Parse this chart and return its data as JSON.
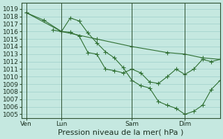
{
  "background_color": "#c5e8e0",
  "grid_color": "#9ecfca",
  "line_color": "#2d6e30",
  "marker_color": "#2d6e30",
  "ylabel_ticks": [
    1005,
    1006,
    1007,
    1008,
    1009,
    1010,
    1011,
    1012,
    1013,
    1014,
    1015,
    1016,
    1017,
    1018,
    1019
  ],
  "ylim": [
    1004.5,
    1019.8
  ],
  "xlabel": "Pression niveau de la mer( hPa )",
  "xlabel_fontsize": 8,
  "tick_fontsize": 6.5,
  "day_labels": [
    "Ven",
    "Lun",
    "Sam",
    "Dim"
  ],
  "day_positions": [
    0,
    4,
    12,
    18
  ],
  "xlim": [
    -0.5,
    22
  ],
  "series": [
    {
      "x": [
        0,
        4,
        8,
        12,
        16,
        18,
        20,
        22
      ],
      "y": [
        1018.5,
        1016.0,
        1015.0,
        1014.0,
        1013.2,
        1013.0,
        1012.5,
        1012.3
      ]
    },
    {
      "x": [
        0,
        2,
        4,
        5,
        6,
        7,
        8,
        9,
        10,
        11,
        12,
        13,
        14,
        15,
        16,
        17,
        18,
        19,
        20,
        21,
        22
      ],
      "y": [
        1018.5,
        1017.5,
        1016.0,
        1017.8,
        1017.4,
        1015.8,
        1014.5,
        1013.3,
        1012.5,
        1011.2,
        1009.5,
        1008.8,
        1008.5,
        1006.7,
        1006.2,
        1005.8,
        1005.0,
        1005.4,
        1006.2,
        1008.3,
        1009.5
      ]
    },
    {
      "x": [
        3,
        4,
        5,
        6,
        7,
        8,
        9,
        10,
        11,
        12,
        13,
        14,
        15,
        16,
        17,
        18,
        19,
        20,
        21,
        22
      ],
      "y": [
        1016.2,
        1016.0,
        1015.9,
        1015.4,
        1013.2,
        1013.0,
        1011.0,
        1010.8,
        1010.5,
        1011.0,
        1010.5,
        1009.3,
        1009.1,
        1010.0,
        1011.0,
        1010.3,
        1011.0,
        1012.3,
        1012.0,
        1012.3
      ]
    }
  ]
}
